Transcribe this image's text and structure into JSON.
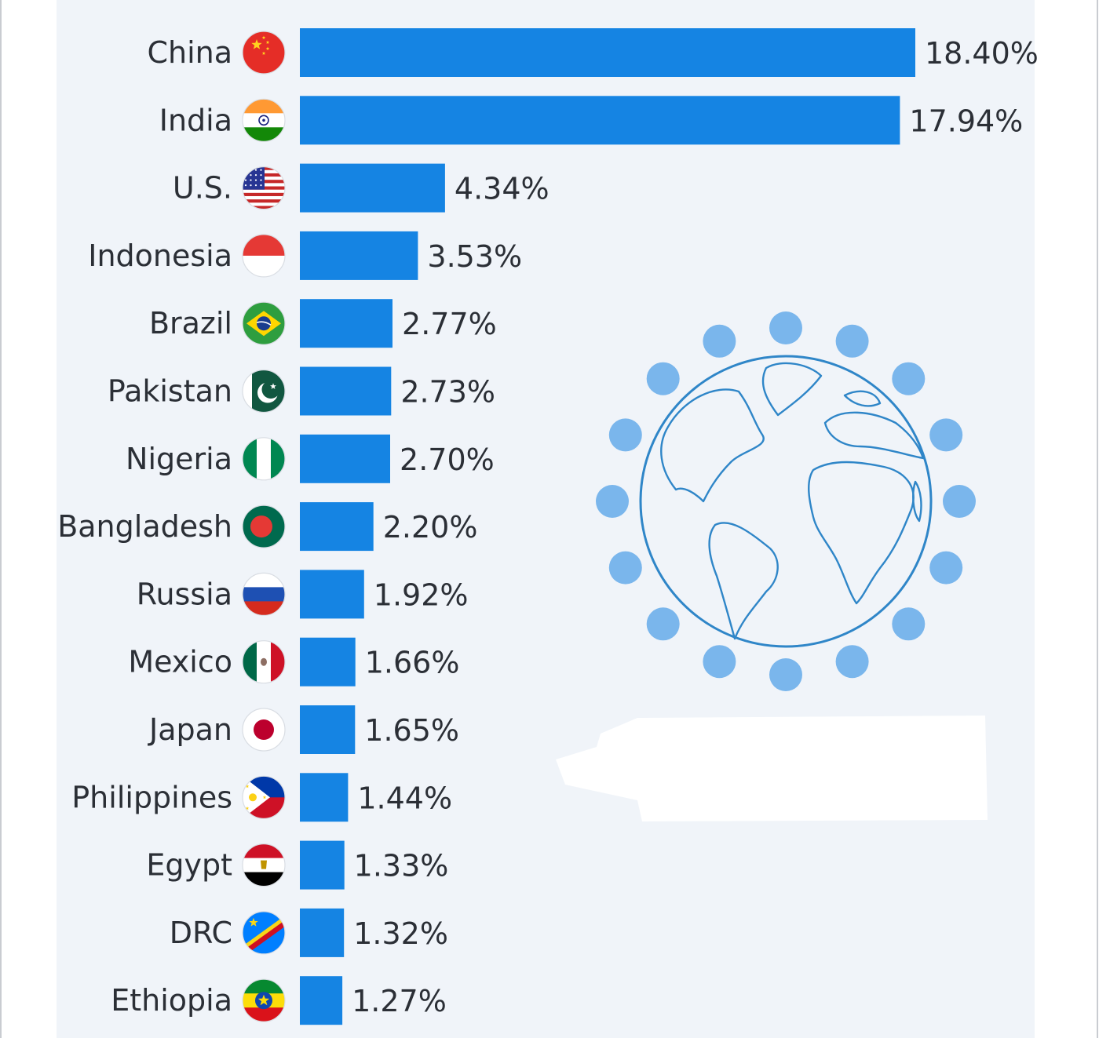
{
  "chart_data": {
    "type": "bar",
    "orientation": "horizontal",
    "categories": [
      "China",
      "India",
      "U.S.",
      "Indonesia",
      "Brazil",
      "Pakistan",
      "Nigeria",
      "Bangladesh",
      "Russia",
      "Mexico",
      "Japan",
      "Philippines",
      "Egypt",
      "DRC",
      "Ethiopia"
    ],
    "values": [
      18.4,
      17.94,
      4.34,
      3.53,
      2.77,
      2.73,
      2.7,
      2.2,
      1.92,
      1.66,
      1.65,
      1.44,
      1.33,
      1.32,
      1.27
    ],
    "value_labels": [
      "18.40%",
      "17.94%",
      "4.34%",
      "3.53%",
      "2.77%",
      "2.73%",
      "2.70%",
      "2.20%",
      "1.92%",
      "1.66%",
      "1.65%",
      "1.44%",
      "1.33%",
      "1.32%",
      "1.27%"
    ],
    "flag_icons": [
      "china-flag-icon",
      "india-flag-icon",
      "us-flag-icon",
      "indonesia-flag-icon",
      "brazil-flag-icon",
      "pakistan-flag-icon",
      "nigeria-flag-icon",
      "bangladesh-flag-icon",
      "russia-flag-icon",
      "mexico-flag-icon",
      "japan-flag-icon",
      "philippines-flag-icon",
      "egypt-flag-icon",
      "drc-flag-icon",
      "ethiopia-flag-icon"
    ],
    "xlim": [
      0,
      18.4
    ],
    "grid": false,
    "legend": "none",
    "bar_color": "#1584e3",
    "panel_color": "#f0f4f9",
    "decoration_icon": "globe-icon",
    "decoration_dot_color": "#7ab6ec",
    "decoration_line_color": "#2f86c8"
  }
}
